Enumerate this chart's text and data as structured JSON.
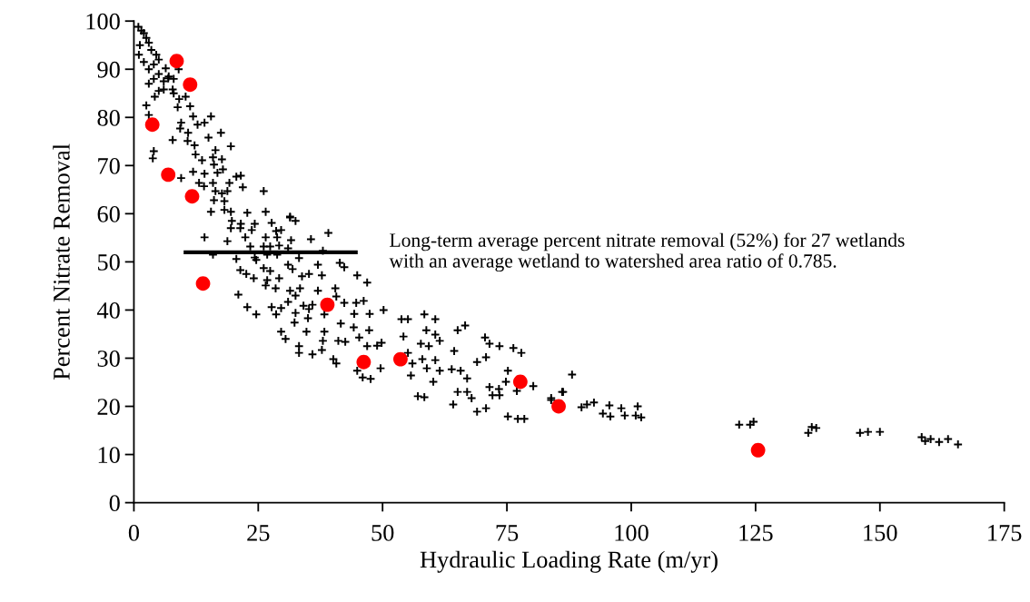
{
  "chart_data": {
    "type": "scatter",
    "xlabel": "Hydraulic Loading Rate (m/yr)",
    "ylabel": "Percent Nitrate Removal",
    "xlim": [
      0,
      175
    ],
    "xticks": [
      0,
      25,
      50,
      75,
      100,
      125,
      150,
      175
    ],
    "ylim": [
      0,
      100
    ],
    "yticks": [
      0,
      10,
      20,
      30,
      40,
      50,
      60,
      70,
      80,
      90,
      100
    ],
    "grid": false,
    "legend": false,
    "series": [
      {
        "marker": "cross",
        "color": "#000000",
        "x": [
          0.9,
          1.5,
          2,
          2.5,
          1.2,
          3,
          3.5,
          4.5,
          1,
          2,
          3,
          4,
          5,
          4,
          5,
          6,
          7,
          8,
          9,
          8,
          3,
          5,
          2.5,
          3,
          4,
          3.8,
          4.2,
          6.4,
          6.9,
          6.0,
          7.8,
          9.1,
          10.4,
          8.8,
          11.3,
          11.9,
          15.5,
          12.8,
          14.2,
          9.5,
          9.3,
          10.9,
          15.0,
          17.5,
          7.8,
          10.8,
          12.2,
          19.5,
          12.4,
          13.7,
          16.4,
          15.9,
          17.7,
          16.1,
          14.2,
          11.9,
          9.5,
          16.8,
          17.9,
          13.1,
          14.1,
          15.9,
          19.2,
          20.6,
          21.5,
          21.9,
          16.4,
          17.7,
          18.8,
          26.1,
          16.1,
          18.2,
          18.2,
          19.5,
          15.5,
          22.8,
          26.5,
          31.4,
          14.2,
          19.7,
          21.5,
          24.3,
          27.7,
          31.4,
          32.5,
          19.5,
          21.4,
          22.4,
          23.7,
          28.6,
          29.6,
          26.5,
          28.8,
          31.6,
          35.6,
          39.1,
          18.8,
          23.4,
          26.1,
          27.4,
          29.2,
          31.0,
          15.9,
          24.3,
          24.6,
          26.8,
          28.8,
          33.2,
          38.0,
          20.6,
          26.1,
          27.4,
          31.0,
          31.9,
          37.0,
          41.4,
          42.3,
          21.4,
          22.6,
          24.1,
          26.8,
          29.2,
          33.8,
          35.2,
          37.8,
          44.9,
          46.9,
          26.5,
          28.5,
          31.4,
          32.5,
          33.4,
          37.0,
          40.5,
          40.7,
          42.3,
          44.7,
          46.2,
          31.0,
          34.1,
          35.2,
          35.9,
          21.0,
          22.8,
          24.6,
          27.7,
          28.6,
          29.6,
          32.5,
          35.0,
          38.3,
          44.3,
          47.4,
          50.2,
          32.3,
          34.7,
          38.3,
          41.6,
          44.2,
          47.3,
          29.6,
          30.5,
          38.0,
          41.1,
          42.5,
          45.3,
          46.9,
          48.9,
          33.2,
          33.2,
          35.9,
          37.8,
          40.1,
          40.7,
          49.6,
          53.8,
          55.1,
          58.4,
          60.6,
          54.2,
          58.8,
          60.6,
          65.1,
          66.6,
          57.7,
          59.3,
          61.5,
          49.8,
          64.4,
          70.6,
          71.5,
          73.5,
          76.3,
          77.9,
          69.0,
          70.8,
          55.1,
          56.0,
          58.0,
          60.6,
          58.9,
          61.5,
          63.9,
          65.7,
          67.0,
          60.2,
          55.7,
          47.6,
          46.0,
          44.9,
          57.1,
          58.4,
          64.2,
          65.1,
          67.0,
          67.9,
          69.0,
          70.8,
          72.1,
          73.5,
          71.5,
          73.4,
          75.2,
          74.8,
          77.0,
          80.3,
          75.2,
          77.2,
          78.5,
          83.9,
          86.3,
          88.1,
          86.1,
          83.9,
          90.0,
          91.1,
          92.5,
          94.3,
          95.6,
          95.8,
          98.0,
          98.7,
          101.3,
          100.9,
          102.0,
          121.7,
          123.9,
          124.6,
          135.6,
          136.3,
          137.2,
          146.0,
          147.6,
          150.0,
          158.4,
          159.1,
          160.2,
          161.9,
          163.7,
          165.7
        ],
        "values": [
          98.8,
          98,
          97.5,
          96.5,
          95,
          95.5,
          94,
          93,
          93,
          91.5,
          90,
          91,
          92,
          88,
          89,
          87.5,
          88.5,
          88,
          90,
          85,
          87,
          85.5,
          82.5,
          80.5,
          73,
          71.5,
          84.3,
          90.2,
          88.1,
          85.8,
          85.8,
          83.8,
          84.3,
          82.1,
          82.3,
          80.2,
          80.2,
          78.5,
          78.9,
          78.9,
          77.7,
          76.8,
          75.8,
          76.8,
          75.3,
          75.1,
          74.2,
          74.0,
          72.3,
          71.1,
          73.2,
          71.7,
          71.3,
          70.2,
          68.3,
          68.7,
          67.4,
          68.5,
          69.2,
          66.4,
          65.7,
          66.4,
          66.4,
          67.7,
          67.9,
          65.5,
          64.7,
          64.2,
          64.7,
          64.7,
          62.8,
          62.6,
          60.8,
          60.4,
          60.4,
          60.2,
          60.4,
          59.4,
          55.1,
          58.5,
          57.9,
          57.9,
          58.1,
          59.2,
          58.5,
          57.0,
          57.0,
          55.1,
          56.6,
          56.4,
          56.6,
          55.1,
          55.1,
          54.5,
          54.7,
          56.0,
          54.3,
          53.2,
          53.2,
          53.2,
          53.4,
          52.8,
          51.5,
          50.9,
          50.4,
          51.5,
          51.5,
          50.8,
          52.3,
          50.6,
          48.7,
          48.1,
          49.4,
          48.5,
          49.4,
          49.8,
          48.9,
          48.3,
          47.5,
          46.6,
          46.2,
          46.6,
          47.0,
          47.5,
          47.2,
          47.2,
          45.7,
          45.1,
          44.5,
          44.0,
          43.0,
          44.5,
          44.0,
          44.5,
          42.8,
          41.5,
          41.5,
          41.9,
          41.7,
          40.9,
          40.2,
          41.1,
          43.2,
          40.6,
          39.1,
          40.6,
          39.1,
          40.4,
          39.4,
          38.3,
          39.1,
          39.2,
          39.2,
          40.0,
          37.4,
          35.5,
          35.5,
          37.2,
          36.4,
          35.8,
          35.5,
          34.0,
          33.6,
          33.6,
          33.4,
          34.3,
          32.5,
          32.6,
          32.5,
          31.1,
          30.8,
          31.7,
          29.8,
          28.9,
          27.9,
          38.1,
          38.1,
          39.1,
          38.1,
          34.5,
          35.8,
          34.9,
          35.8,
          36.8,
          33.0,
          32.5,
          33.6,
          33.2,
          31.5,
          34.3,
          33.0,
          32.5,
          32.1,
          31.1,
          29.2,
          30.2,
          31.1,
          28.9,
          29.8,
          29.6,
          27.9,
          27.4,
          27.7,
          27.4,
          25.8,
          25.1,
          26.4,
          25.7,
          26.0,
          27.4,
          22.1,
          21.9,
          20.4,
          23.0,
          23.0,
          21.7,
          18.9,
          19.6,
          22.3,
          22.3,
          24.0,
          23.6,
          27.4,
          25.1,
          23.2,
          24.2,
          17.9,
          17.4,
          17.4,
          21.7,
          23.0,
          26.6,
          23.0,
          21.3,
          19.8,
          20.4,
          20.8,
          18.5,
          20.2,
          17.9,
          19.6,
          18.1,
          20.0,
          18.1,
          17.7,
          16.2,
          16.2,
          16.8,
          14.5,
          15.7,
          15.5,
          14.5,
          14.7,
          14.7,
          13.6,
          12.8,
          13.2,
          12.6,
          13.2,
          12.1
        ]
      },
      {
        "marker": "circle",
        "color": "#ff0000",
        "x": [
          3.7,
          8.6,
          11.3,
          6.9,
          11.7,
          13.9,
          38.9,
          46.2,
          53.6,
          77.7,
          85.4,
          125.5
        ],
        "values": [
          78.5,
          91.7,
          86.8,
          68.1,
          63.6,
          45.5,
          41.1,
          29.2,
          29.8,
          25.1,
          20.0,
          10.9
        ]
      },
      {
        "type": "line",
        "color": "#000000",
        "line_style": "solid",
        "x": [
          10,
          45
        ],
        "values": [
          52,
          52
        ]
      }
    ],
    "annotations": [
      {
        "text": "Long-term average percent nitrate removal (52%) for 27 wetlands\nwith an average wetland to watershed area ratio of 0.785.",
        "x": 45,
        "y": 52
      }
    ]
  }
}
